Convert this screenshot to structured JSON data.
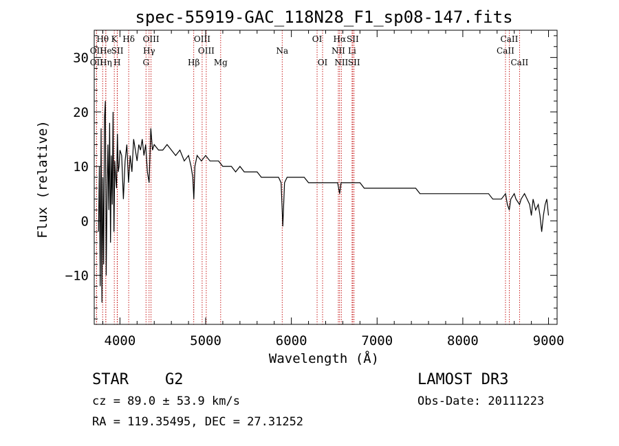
{
  "chart_data": {
    "type": "line",
    "title": "spec-55919-GAC_118N28_F1_sp08-147.fits",
    "xlabel": "Wavelength (Å)",
    "ylabel": "Flux (relative)",
    "xlim": [
      3700,
      9100
    ],
    "ylim": [
      -19,
      35
    ],
    "x_ticks": [
      4000,
      5000,
      6000,
      7000,
      8000,
      9000
    ],
    "y_ticks": [
      -10,
      0,
      10,
      20,
      30
    ],
    "grid": false,
    "legend": "none",
    "series": [
      {
        "x": [
          3750,
          3760,
          3770,
          3780,
          3790,
          3800,
          3810,
          3820,
          3830,
          3840,
          3850,
          3860,
          3870,
          3880,
          3890,
          3900,
          3910,
          3920,
          3930,
          3940,
          3950,
          3960,
          3970,
          3980,
          3990,
          4000,
          4020,
          4040,
          4060,
          4080,
          4100,
          4120,
          4140,
          4160,
          4180,
          4200,
          4220,
          4240,
          4260,
          4280,
          4300,
          4320,
          4340,
          4360,
          4380,
          4400,
          4450,
          4500,
          4550,
          4600,
          4650,
          4700,
          4750,
          4800,
          4830,
          4850,
          4862,
          4875,
          4900,
          4950,
          5000,
          5050,
          5100,
          5150,
          5200,
          5250,
          5300,
          5350,
          5400,
          5450,
          5500,
          5550,
          5600,
          5650,
          5700,
          5750,
          5800,
          5850,
          5880,
          5893,
          5900,
          5920,
          5950,
          6000,
          6050,
          6100,
          6150,
          6200,
          6250,
          6300,
          6350,
          6400,
          6450,
          6500,
          6540,
          6563,
          6580,
          6600,
          6650,
          6700,
          6750,
          6800,
          6850,
          6900,
          6950,
          7000,
          7050,
          7100,
          7150,
          7200,
          7250,
          7300,
          7350,
          7400,
          7450,
          7500,
          7550,
          7600,
          7650,
          7700,
          7750,
          7800,
          7850,
          7900,
          7950,
          8000,
          8050,
          8100,
          8150,
          8200,
          8250,
          8300,
          8350,
          8400,
          8450,
          8498,
          8520,
          8542,
          8560,
          8600,
          8620,
          8662,
          8680,
          8720,
          8750,
          8780,
          8800,
          8820,
          8850,
          8880,
          8900,
          8920,
          8940,
          8960,
          8980,
          9000
        ],
        "y": [
          -2,
          10,
          -12,
          17,
          -15,
          8,
          -8,
          19,
          22,
          -10,
          5,
          14,
          2,
          18,
          -4,
          12,
          3,
          20,
          -2,
          11,
          8,
          6,
          16,
          9,
          10,
          13,
          12,
          4,
          11,
          14,
          7,
          12,
          9,
          15,
          13,
          11,
          14,
          13,
          15,
          12,
          14,
          9,
          7,
          17,
          13,
          14,
          13,
          13,
          14,
          13,
          12,
          13,
          11,
          12,
          10,
          8,
          4,
          10,
          12,
          11,
          12,
          11,
          11,
          11,
          10,
          10,
          10,
          9,
          10,
          9,
          9,
          9,
          9,
          8,
          8,
          8,
          8,
          8,
          7,
          2,
          -1,
          7,
          8,
          8,
          8,
          8,
          8,
          7,
          7,
          7,
          7,
          7,
          7,
          7,
          7,
          5,
          7,
          7,
          7,
          7,
          7,
          7,
          6,
          6,
          6,
          6,
          6,
          6,
          6,
          6,
          6,
          6,
          6,
          6,
          6,
          5,
          5,
          5,
          5,
          5,
          5,
          5,
          5,
          5,
          5,
          5,
          5,
          5,
          5,
          5,
          5,
          5,
          4,
          4,
          4,
          5,
          3,
          2,
          4,
          5,
          4,
          3,
          4,
          5,
          4,
          3,
          1,
          4,
          2,
          3,
          1,
          -2,
          1,
          3,
          4,
          1
        ]
      }
    ],
    "line_markers": [
      {
        "label": "Hθ",
        "x": 3798,
        "row": 1
      },
      {
        "label": "OII",
        "x": 3727,
        "row": 2
      },
      {
        "label": "OII",
        "x": 3727,
        "row": 3
      },
      {
        "label": "He",
        "x": 3835,
        "row": 2
      },
      {
        "label": "Hη",
        "x": 3835,
        "row": 3
      },
      {
        "label": "K",
        "x": 3934,
        "row": 1
      },
      {
        "label": "SII",
        "x": 3970,
        "row": 2
      },
      {
        "label": "H",
        "x": 3968,
        "row": 3
      },
      {
        "label": "Hδ",
        "x": 4102,
        "row": 1
      },
      {
        "label": "OIII",
        "x": 4363,
        "row": 1
      },
      {
        "label": "Hγ",
        "x": 4340,
        "row": 2
      },
      {
        "label": "G",
        "x": 4304,
        "row": 3
      },
      {
        "label": "Hβ",
        "x": 4861,
        "row": 3
      },
      {
        "label": "OIII",
        "x": 4959,
        "row": 1
      },
      {
        "label": "OIII",
        "x": 5007,
        "row": 2
      },
      {
        "label": "Mg",
        "x": 5175,
        "row": 3
      },
      {
        "label": "Na",
        "x": 5893,
        "row": 2
      },
      {
        "label": "OI",
        "x": 6300,
        "row": 1
      },
      {
        "label": "OI",
        "x": 6364,
        "row": 3
      },
      {
        "label": "Hα",
        "x": 6563,
        "row": 1
      },
      {
        "label": "NII",
        "x": 6548,
        "row": 2
      },
      {
        "label": "NII",
        "x": 6583,
        "row": 3
      },
      {
        "label": "SII",
        "x": 6716,
        "row": 1
      },
      {
        "label": "Li",
        "x": 6708,
        "row": 2
      },
      {
        "label": "SII",
        "x": 6731,
        "row": 3
      },
      {
        "label": "CaII",
        "x": 8542,
        "row": 1
      },
      {
        "label": "CaII",
        "x": 8498,
        "row": 2
      },
      {
        "label": "CaII",
        "x": 8662,
        "row": 3
      }
    ]
  },
  "info": {
    "object_class": "STAR",
    "subclass": "G2",
    "survey": "LAMOST DR3",
    "redshift": "cz = 89.0 ± 53.9 km/s",
    "obs_date": "Obs-Date: 20111223",
    "coords": "RA = 119.35495, DEC =  27.31252"
  },
  "colors": {
    "spectrum": "#000000",
    "marker_line": "#c00000",
    "axes": "#000000"
  }
}
